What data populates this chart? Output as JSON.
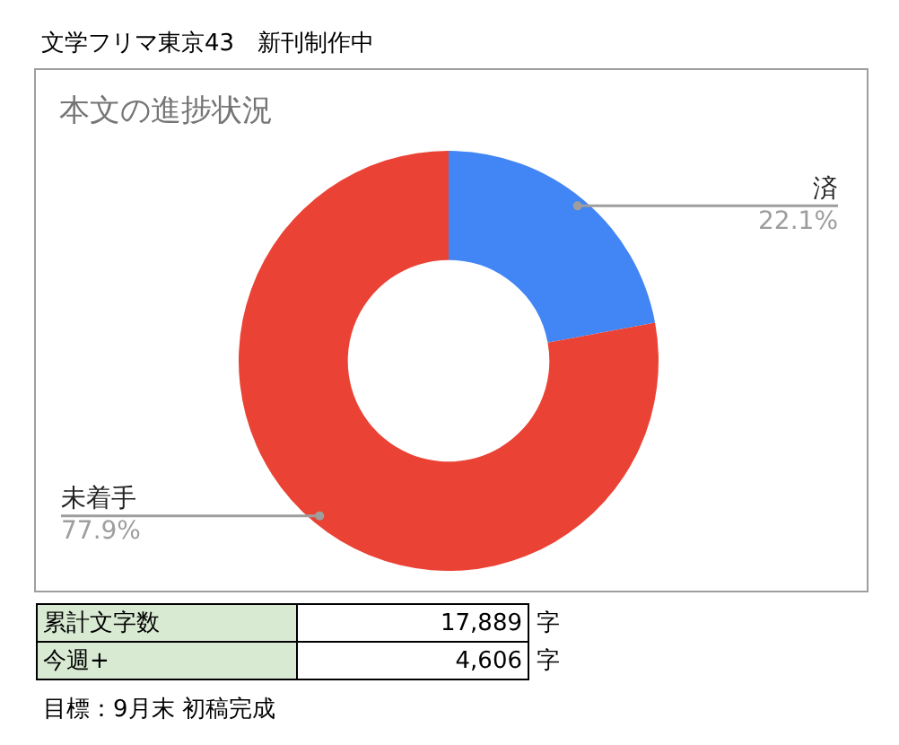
{
  "chart_data": {
    "type": "donut",
    "title": "本文の進捗状況",
    "categories": [
      "済",
      "未着手"
    ],
    "values": [
      22.1,
      77.9
    ],
    "colors": [
      "#4285f4",
      "#ea4335"
    ],
    "value_labels": [
      "22.1%",
      "77.9%"
    ],
    "legend": false,
    "annotations": [
      "文学フリマ東京43　新刊制作中",
      "累計文字数",
      "17,889",
      "字",
      "今週+",
      "4,606",
      "字",
      "目標：9月末 初稿完成"
    ]
  }
}
